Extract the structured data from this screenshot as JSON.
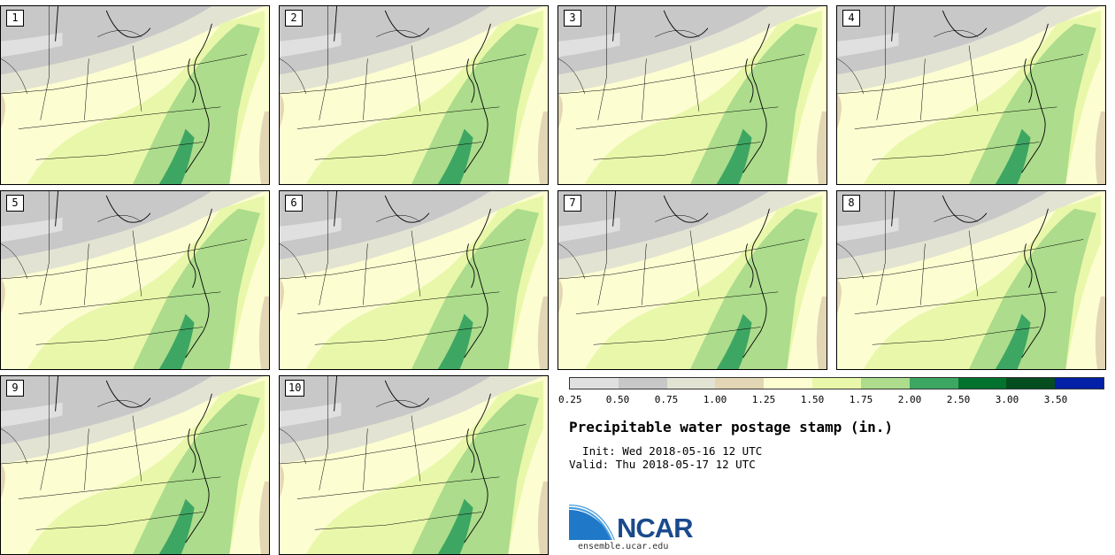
{
  "stamps": [
    "1",
    "2",
    "3",
    "4",
    "5",
    "6",
    "7",
    "8",
    "9",
    "10"
  ],
  "colorbar": {
    "ticks": [
      "0.25",
      "0.50",
      "0.75",
      "1.00",
      "1.25",
      "1.50",
      "1.75",
      "2.00",
      "2.50",
      "3.00",
      "3.50"
    ],
    "colors": [
      "#e0e0e0",
      "#c8c8c8",
      "#e2e3d2",
      "#e3d6b4",
      "#fdfdd2",
      "#e9f7aa",
      "#acdc8c",
      "#3ea663",
      "#03722e",
      "#044d1e",
      "#0320a6"
    ]
  },
  "title": "Precipitable water postage stamp (in.)",
  "init": "  Init: Wed 2018-05-16 12 UTC",
  "valid": "Valid: Thu 2018-05-17 12 UTC",
  "logo": {
    "text": "NCAR",
    "url": "ensemble.ucar.edu"
  }
}
